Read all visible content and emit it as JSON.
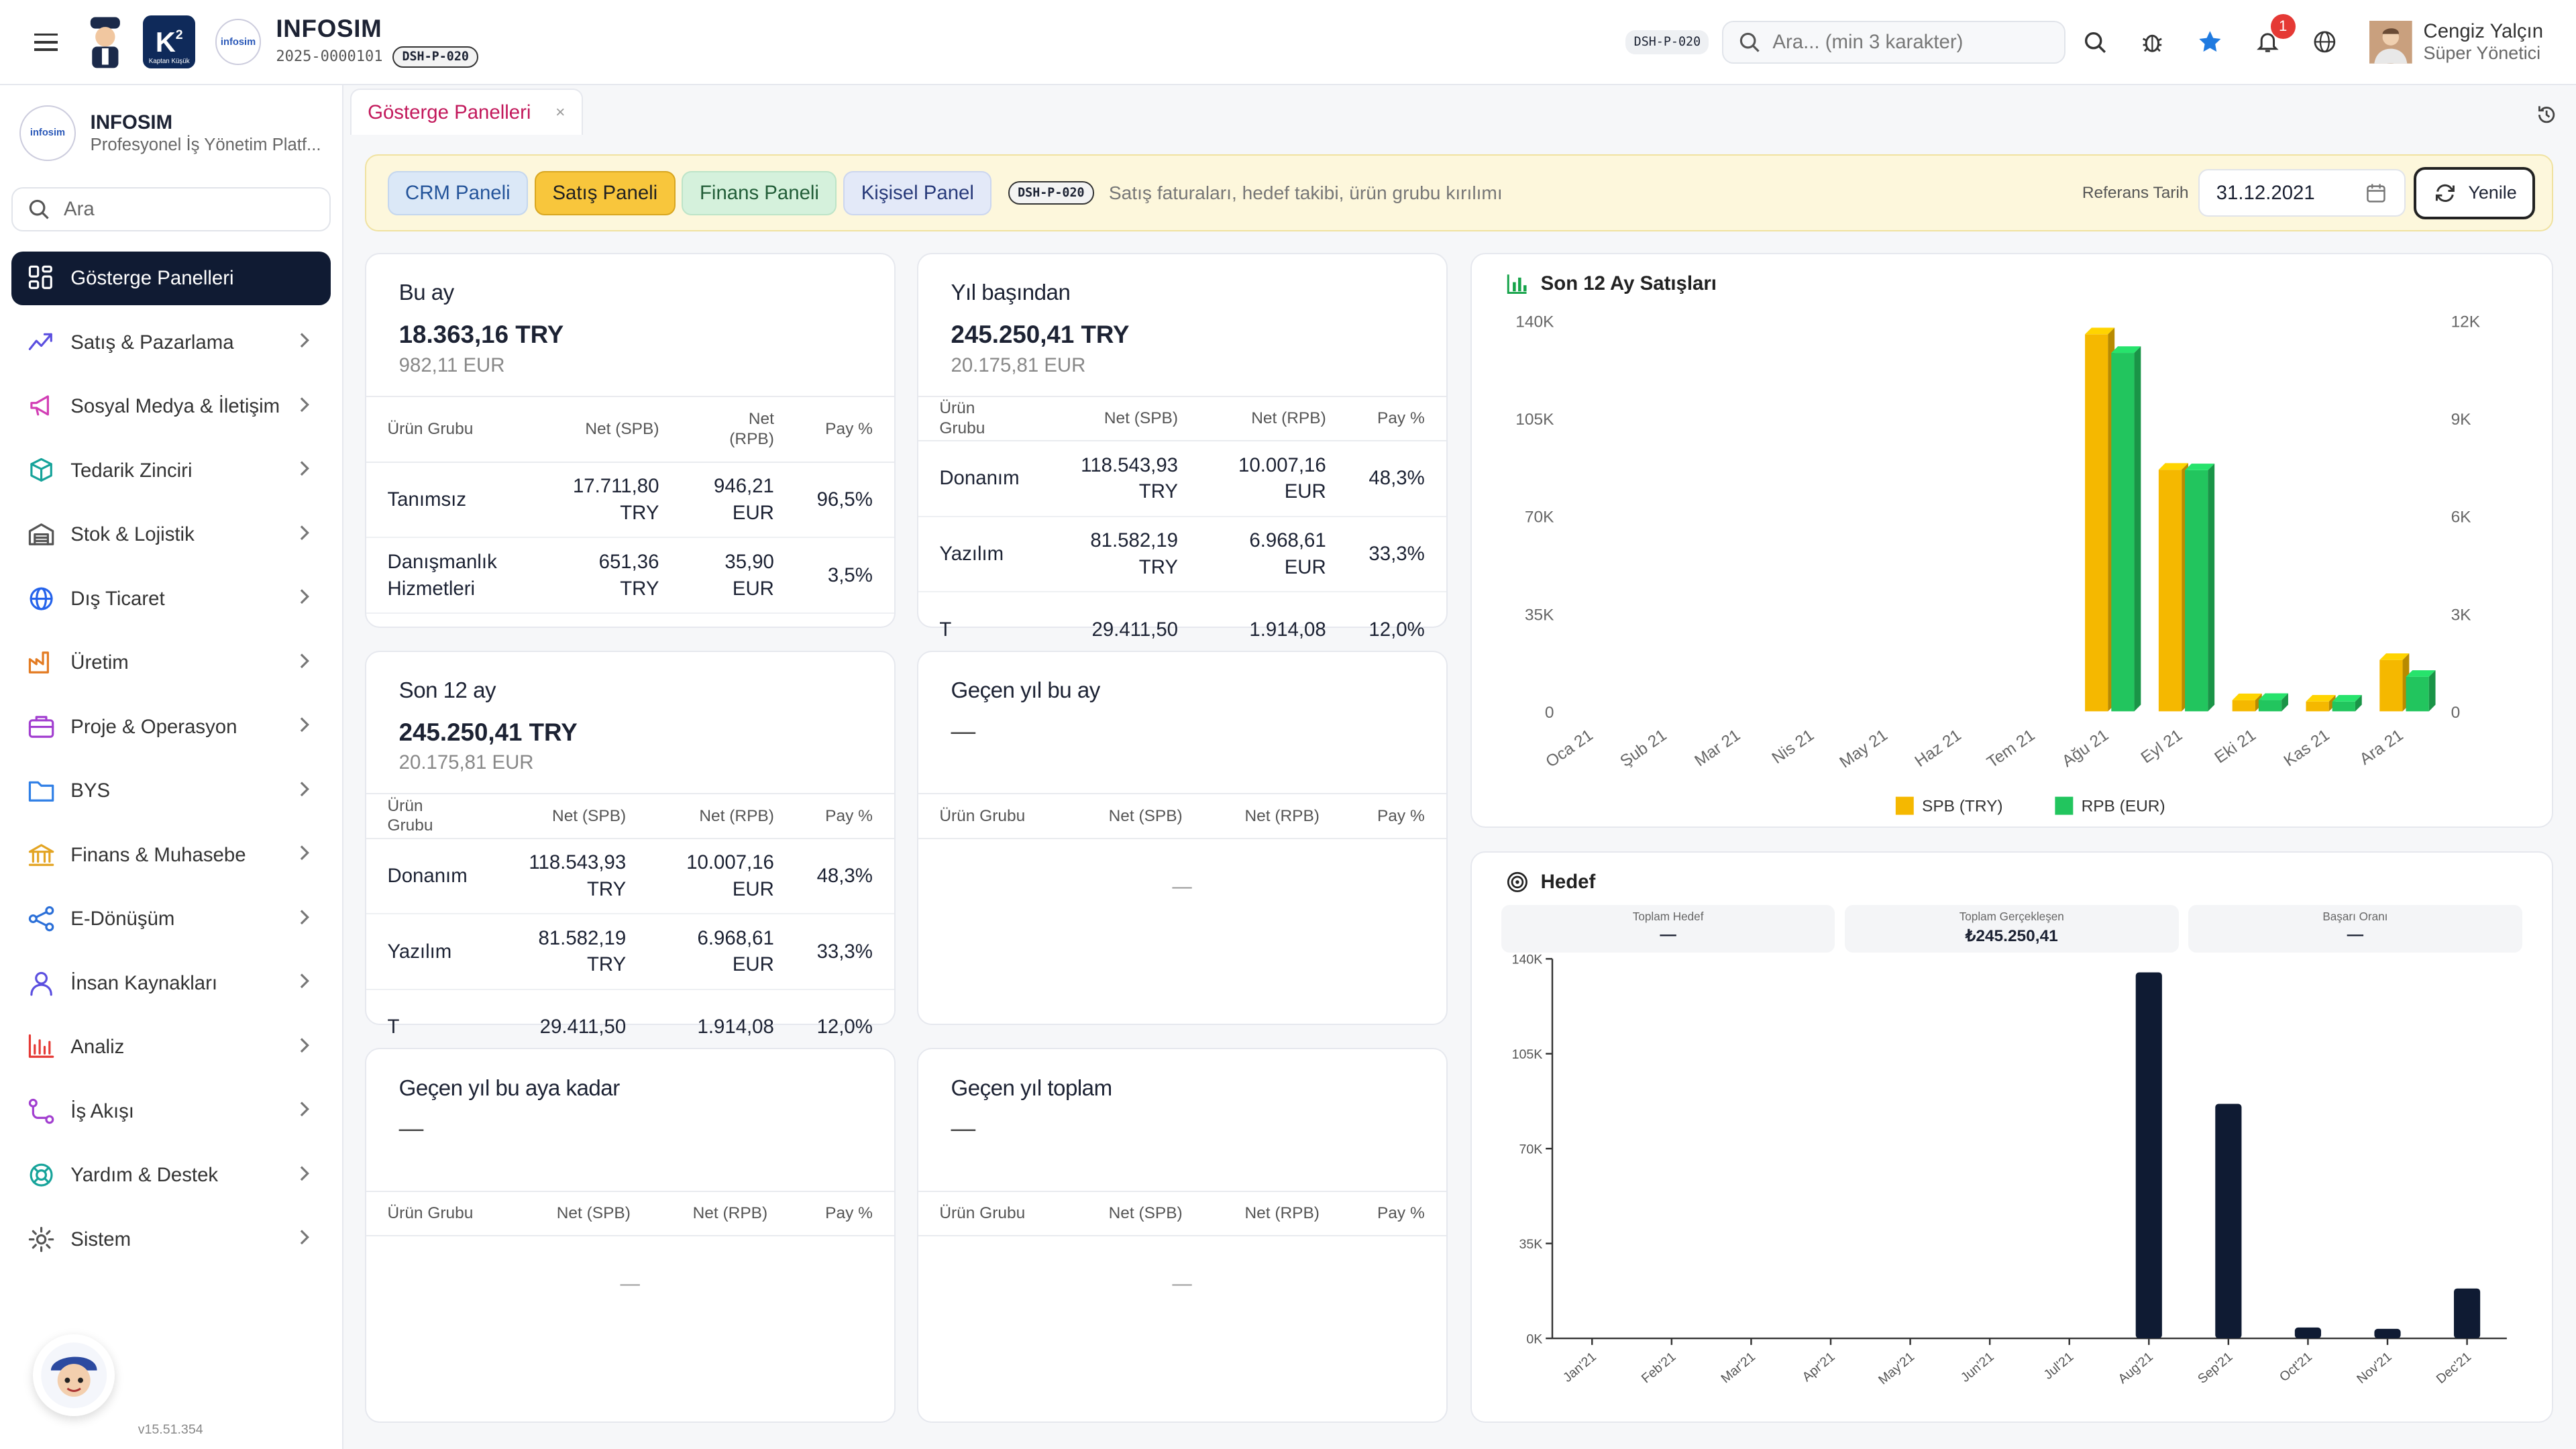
{
  "header": {
    "app_name": "INFOSIM",
    "code": "2025-0000101",
    "page_code": "DSH-P-020",
    "page_code_right": "DSH-P-020",
    "k2_caption": "Kaptan Küşük",
    "search_placeholder": "Ara... (min 3 karakter)",
    "notification_count": "1",
    "user_name": "Cengiz Yalçın",
    "user_role": "Süper Yönetici",
    "logo_text": "infosim"
  },
  "sidebar": {
    "org_name": "INFOSIM",
    "org_sub": "Profesyonel İş Yönetim Platf...",
    "search_placeholder": "Ara",
    "version": "v15.51.354",
    "items": [
      {
        "label": "Gösterge Panelleri",
        "icon": "dashboard-grid-icon",
        "color": "#ffffff"
      },
      {
        "label": "Satış & Pazarlama",
        "icon": "trend-up-icon",
        "color": "#5b4fe0"
      },
      {
        "label": "Sosyal Medya & İletişim",
        "icon": "megaphone-icon",
        "color": "#d23fb5"
      },
      {
        "label": "Tedarik Zinciri",
        "icon": "box-icon",
        "color": "#16a39a"
      },
      {
        "label": "Stok & Lojistik",
        "icon": "warehouse-icon",
        "color": "#555555"
      },
      {
        "label": "Dış Ticaret",
        "icon": "globe-icon",
        "color": "#2563eb"
      },
      {
        "label": "Üretim",
        "icon": "factory-icon",
        "color": "#e37b22"
      },
      {
        "label": "Proje & Operasyon",
        "icon": "briefcase-icon",
        "color": "#a23fd0"
      },
      {
        "label": "BYS",
        "icon": "folder-icon",
        "color": "#2f7fe6"
      },
      {
        "label": "Finans & Muhasebe",
        "icon": "bank-icon",
        "color": "#e3a422"
      },
      {
        "label": "E-Dönüşüm",
        "icon": "share-icon",
        "color": "#2a6fd8"
      },
      {
        "label": "İnsan Kaynakları",
        "icon": "user-icon",
        "color": "#5b4fe0"
      },
      {
        "label": "Analiz",
        "icon": "bar-chart-icon",
        "color": "#e53935"
      },
      {
        "label": "İş Akışı",
        "icon": "workflow-icon",
        "color": "#a23fd0"
      },
      {
        "label": "Yardım & Destek",
        "icon": "lifebuoy-icon",
        "color": "#16a39a"
      },
      {
        "label": "Sistem",
        "icon": "gear-icon",
        "color": "#555555"
      }
    ]
  },
  "tab": {
    "label": "Gösterge Panelleri",
    "close": "×"
  },
  "panelbar": {
    "tabs": [
      "CRM Paneli",
      "Satış Paneli",
      "Finans Paneli",
      "Kişisel Panel"
    ],
    "code": "DSH-P-020",
    "description": "Satış faturaları, hedef takibi, ürün grubu kırılımı",
    "ref_label": "Referans Tarih",
    "ref_date": "31.12.2021",
    "refresh_label": "Yenile"
  },
  "cols": {
    "group": "Ürün Grubu",
    "net_spb": "Net (SPB)",
    "net_rpb": "Net (RPB)",
    "share": "Pay %"
  },
  "cards": {
    "this_month": {
      "title": "Bu ay",
      "total": "18.363,16 TRY",
      "total_eur": "982,11 EUR",
      "rows": [
        [
          "Tanımsız",
          "17.711,80 TRY",
          "946,21 EUR",
          "96,5%"
        ],
        [
          "Danışmanlık Hizmetleri",
          "651,36 TRY",
          "35,90 EUR",
          "3,5%"
        ]
      ]
    },
    "ytd": {
      "title": "Yıl başından",
      "total": "245.250,41 TRY",
      "total_eur": "20.175,81 EUR",
      "rows": [
        [
          "Donanım",
          "118.543,93 TRY",
          "10.007,16 EUR",
          "48,3%"
        ],
        [
          "Yazılım",
          "81.582,19 TRY",
          "6.968,61 EUR",
          "33,3%"
        ],
        [
          "T",
          "29.411,50",
          "1.914,08",
          "12,0%"
        ]
      ]
    },
    "last12": {
      "title": "Son 12 ay",
      "total": "245.250,41 TRY",
      "total_eur": "20.175,81 EUR",
      "rows": [
        [
          "Donanım",
          "118.543,93 TRY",
          "10.007,16 EUR",
          "48,3%"
        ],
        [
          "Yazılım",
          "81.582,19 TRY",
          "6.968,61 EUR",
          "33,3%"
        ],
        [
          "T",
          "29.411,50",
          "1.914,08",
          "12,0%"
        ]
      ]
    },
    "ly_month": {
      "title": "Geçen yıl bu ay",
      "total": "—",
      "empty": "—"
    },
    "ly_ytd": {
      "title": "Geçen yıl bu aya kadar",
      "total": "—",
      "empty": "—"
    },
    "ly_total": {
      "title": "Geçen yıl toplam",
      "total": "—",
      "empty": "—"
    }
  },
  "sales_chart": {
    "title": "Son 12 Ay Satışları"
  },
  "target": {
    "title": "Hedef",
    "kpis": [
      {
        "label": "Toplam Hedef",
        "value": "—"
      },
      {
        "label": "Toplam Gerçekleşen",
        "value": "₺245.250,41"
      },
      {
        "label": "Başarı Oranı",
        "value": "—"
      }
    ]
  },
  "chart_data": [
    {
      "type": "bar",
      "title": "Son 12 Ay Satışları",
      "categories": [
        "Oca 21",
        "Şub 21",
        "Mar 21",
        "Nis 21",
        "May 21",
        "Haz 21",
        "Tem 21",
        "Ağu 21",
        "Eyl 21",
        "Eki 21",
        "Kas 21",
        "Ara 21"
      ],
      "series": [
        {
          "name": "SPB (TRY)",
          "axis": "left",
          "color": "#f5b800",
          "values": [
            0,
            0,
            0,
            0,
            0,
            0,
            0,
            135000,
            86500,
            4000,
            3500,
            18400
          ]
        },
        {
          "name": "RPB (EUR)",
          "axis": "right",
          "color": "#22c55e",
          "values": [
            0,
            0,
            0,
            0,
            0,
            0,
            0,
            11000,
            7400,
            350,
            300,
            1060
          ]
        }
      ],
      "ylim_left": [
        0,
        140000
      ],
      "yticks_left": [
        "0",
        "35K",
        "70K",
        "105K",
        "140K"
      ],
      "ylim_right": [
        0,
        12000
      ],
      "yticks_right": [
        "0",
        "3K",
        "6K",
        "9K",
        "12K"
      ],
      "legend": "bottom"
    },
    {
      "type": "bar",
      "title": "Hedef",
      "categories": [
        "Jan'21",
        "Feb'21",
        "Mar'21",
        "Apr'21",
        "May'21",
        "Jun'21",
        "Jul'21",
        "Aug'21",
        "Sep'21",
        "Oct'21",
        "Nov'21",
        "Dec'21"
      ],
      "series": [
        {
          "color": "#0f1b33",
          "values": [
            0,
            0,
            0,
            0,
            0,
            0,
            0,
            135000,
            86500,
            4000,
            3500,
            18400
          ]
        }
      ],
      "ylim": [
        0,
        140000
      ],
      "yticks": [
        "0K",
        "35K",
        "70K",
        "105K",
        "140K"
      ]
    }
  ]
}
